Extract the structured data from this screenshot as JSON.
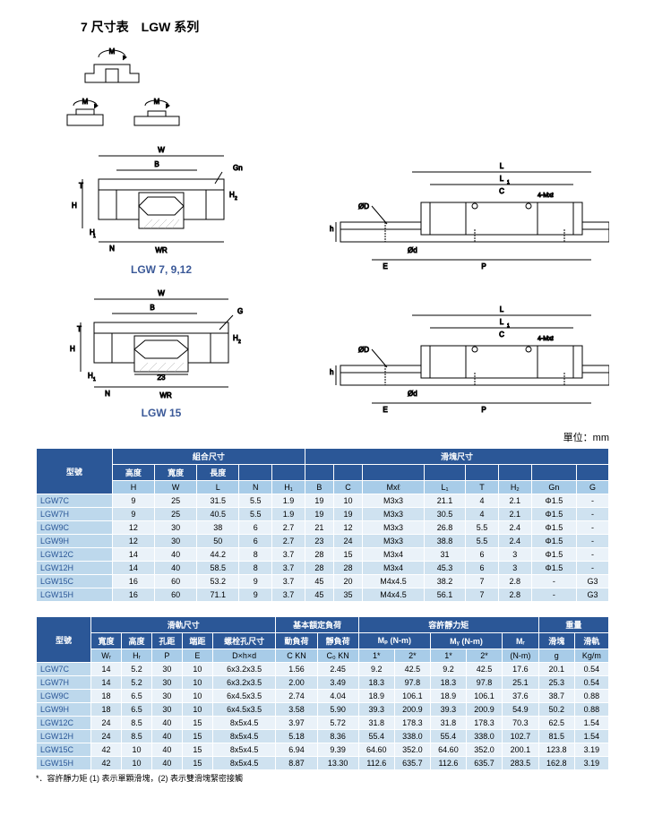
{
  "title": "7 尺寸表　LGW 系列",
  "diagram_caption_1": "LGW 7, 9,12",
  "diagram_caption_2": "LGW 15",
  "unit_label": "單位：mm",
  "diagram_labels": {
    "MT": "M",
    "MR": "M",
    "MP": "M",
    "W": "W",
    "B": "B",
    "Gn": "Gn",
    "T": "T",
    "H": "H",
    "H1": "H",
    "H2": "H",
    "N": "N",
    "WR": "WR",
    "G": "G",
    "L": "L",
    "L1": "L",
    "C": "C",
    "fourM": "4-Mxℓ",
    "phiD": "ØD",
    "phid": "Ød",
    "h": "h",
    "E": "E",
    "P": "P",
    "twentythree": "23"
  },
  "table1": {
    "group_model": "型號",
    "group_comb": "組合尺寸",
    "group_block": "滑塊尺寸",
    "sub": [
      "高度",
      "寬度",
      "長度",
      "",
      "",
      "",
      "",
      "",
      "",
      "",
      "",
      "",
      ""
    ],
    "head": [
      "H",
      "W",
      "L",
      "N",
      "H₁",
      "B",
      "C",
      "Mxℓ",
      "L₁",
      "T",
      "H₂",
      "Gn",
      "G"
    ],
    "rows": [
      [
        "LGW7C",
        "9",
        "25",
        "31.5",
        "5.5",
        "1.9",
        "19",
        "10",
        "M3x3",
        "21.1",
        "4",
        "2.1",
        "Φ1.5",
        "-"
      ],
      [
        "LGW7H",
        "9",
        "25",
        "40.5",
        "5.5",
        "1.9",
        "19",
        "19",
        "M3x3",
        "30.5",
        "4",
        "2.1",
        "Φ1.5",
        "-"
      ],
      [
        "LGW9C",
        "12",
        "30",
        "38",
        "6",
        "2.7",
        "21",
        "12",
        "M3x3",
        "26.8",
        "5.5",
        "2.4",
        "Φ1.5",
        "-"
      ],
      [
        "LGW9H",
        "12",
        "30",
        "50",
        "6",
        "2.7",
        "23",
        "24",
        "M3x3",
        "38.8",
        "5.5",
        "2.4",
        "Φ1.5",
        "-"
      ],
      [
        "LGW12C",
        "14",
        "40",
        "44.2",
        "8",
        "3.7",
        "28",
        "15",
        "M3x4",
        "31",
        "6",
        "3",
        "Φ1.5",
        "-"
      ],
      [
        "LGW12H",
        "14",
        "40",
        "58.5",
        "8",
        "3.7",
        "28",
        "28",
        "M3x4",
        "45.3",
        "6",
        "3",
        "Φ1.5",
        "-"
      ],
      [
        "LGW15C",
        "16",
        "60",
        "53.2",
        "9",
        "3.7",
        "45",
        "20",
        "M4x4.5",
        "38.2",
        "7",
        "2.8",
        "-",
        "G3"
      ],
      [
        "LGW15H",
        "16",
        "60",
        "71.1",
        "9",
        "3.7",
        "45",
        "35",
        "M4x4.5",
        "56.1",
        "7",
        "2.8",
        "-",
        "G3"
      ]
    ]
  },
  "table2": {
    "group_model": "型號",
    "group_rail": "滑軌尺寸",
    "group_load": "基本額定負荷",
    "group_moment": "容許靜力矩",
    "group_weight": "重量",
    "sub_rail": [
      "寬度",
      "高度",
      "孔距",
      "端距",
      "螺栓孔尺寸"
    ],
    "sub_load": [
      "動負荷",
      "靜負荷"
    ],
    "sub_moment": [
      "Mₚ (N-m)",
      "Mᵧ (N-m)",
      "Mᵣ"
    ],
    "sub_weight": [
      "滑塊",
      "滑軌"
    ],
    "head": [
      "Wᵣ",
      "Hᵣ",
      "P",
      "E",
      "D×h×d",
      "C KN",
      "C₀ KN",
      "1*",
      "2*",
      "1*",
      "2*",
      "(N-m)",
      "g",
      "Kg/m"
    ],
    "rows": [
      [
        "LGW7C",
        "14",
        "5.2",
        "30",
        "10",
        "6x3.2x3.5",
        "1.56",
        "2.45",
        "9.2",
        "42.5",
        "9.2",
        "42.5",
        "17.6",
        "20.1",
        "0.54"
      ],
      [
        "LGW7H",
        "14",
        "5.2",
        "30",
        "10",
        "6x3.2x3.5",
        "2.00",
        "3.49",
        "18.3",
        "97.8",
        "18.3",
        "97.8",
        "25.1",
        "25.3",
        "0.54"
      ],
      [
        "LGW9C",
        "18",
        "6.5",
        "30",
        "10",
        "6x4.5x3.5",
        "2.74",
        "4.04",
        "18.9",
        "106.1",
        "18.9",
        "106.1",
        "37.6",
        "38.7",
        "0.88"
      ],
      [
        "LGW9H",
        "18",
        "6.5",
        "30",
        "10",
        "6x4.5x3.5",
        "3.58",
        "5.90",
        "39.3",
        "200.9",
        "39.3",
        "200.9",
        "54.9",
        "50.2",
        "0.88"
      ],
      [
        "LGW12C",
        "24",
        "8.5",
        "40",
        "15",
        "8x5x4.5",
        "3.97",
        "5.72",
        "31.8",
        "178.3",
        "31.8",
        "178.3",
        "70.3",
        "62.5",
        "1.54"
      ],
      [
        "LGW12H",
        "24",
        "8.5",
        "40",
        "15",
        "8x5x4.5",
        "5.18",
        "8.36",
        "55.4",
        "338.0",
        "55.4",
        "338.0",
        "102.7",
        "81.5",
        "1.54"
      ],
      [
        "LGW15C",
        "42",
        "10",
        "40",
        "15",
        "8x5x4.5",
        "6.94",
        "9.39",
        "64.60",
        "352.0",
        "64.60",
        "352.0",
        "200.1",
        "123.8",
        "3.19"
      ],
      [
        "LGW15H",
        "42",
        "10",
        "40",
        "15",
        "8x5x4.5",
        "8.87",
        "13.30",
        "112.6",
        "635.7",
        "112.6",
        "635.7",
        "283.5",
        "162.8",
        "3.19"
      ]
    ]
  },
  "note": "*．容許靜力矩 (1) 表示單顆滑塊，(2) 表示雙滑塊緊密接觸",
  "colors": {
    "header_bg": "#2b5797",
    "subheader_bg": "#a8cce8",
    "row_even": "#eaf2f9",
    "row_odd": "#cfe2f0",
    "model_bg": "#bdd8ec",
    "line": "#000000"
  }
}
